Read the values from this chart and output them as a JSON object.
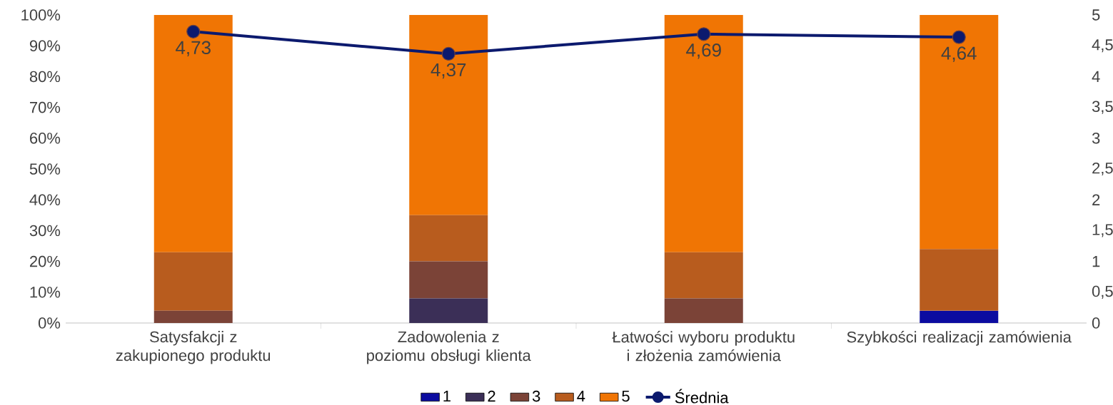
{
  "chart_data": {
    "type": "bar",
    "stacked": true,
    "categories": [
      "Satysfakcji z zakupionego produktu",
      "Zadowolenia z poziomu obsługi klienta",
      "Łatwości wyboru produktu i złożenia zamówienia",
      "Szybkości realizacji zamówienia"
    ],
    "series": [
      {
        "name": "1",
        "color": "#0c0ca0",
        "values": [
          0,
          0,
          0,
          4
        ]
      },
      {
        "name": "2",
        "color": "#3b2f57",
        "values": [
          0,
          8,
          0,
          0
        ]
      },
      {
        "name": "3",
        "color": "#7b4337",
        "values": [
          4,
          12,
          8,
          0
        ]
      },
      {
        "name": "4",
        "color": "#b85c1e",
        "values": [
          19,
          15,
          15,
          20
        ]
      },
      {
        "name": "5",
        "color": "#f07504",
        "values": [
          77,
          65,
          77,
          76
        ]
      },
      {
        "name": "Średnia",
        "type": "line",
        "axis": "y2",
        "marker": "circle",
        "color": "#0c1a6e",
        "values": [
          4.73,
          4.37,
          4.69,
          4.64
        ],
        "value_labels": [
          "4,73",
          "4,37",
          "4,69",
          "4,64"
        ]
      }
    ],
    "ylim": [
      0,
      100
    ],
    "yticks": [
      {
        "value": 0,
        "label": "0%"
      },
      {
        "value": 10,
        "label": "10%"
      },
      {
        "value": 20,
        "label": "20%"
      },
      {
        "value": 30,
        "label": "30%"
      },
      {
        "value": 40,
        "label": "40%"
      },
      {
        "value": 50,
        "label": "50%"
      },
      {
        "value": 60,
        "label": "60%"
      },
      {
        "value": 70,
        "label": "70%"
      },
      {
        "value": 80,
        "label": "80%"
      },
      {
        "value": 90,
        "label": "90%"
      },
      {
        "value": 100,
        "label": "100%"
      }
    ],
    "y2lim": [
      0,
      5
    ],
    "y2ticks": [
      0,
      {
        "value": 0.5,
        "label": "0,5"
      },
      1,
      {
        "value": 1.5,
        "label": "1,5"
      },
      2,
      {
        "value": 2.5,
        "label": "2,5"
      },
      3,
      {
        "value": 3.5,
        "label": "3,5"
      },
      4,
      {
        "value": 4.5,
        "label": "4,5"
      },
      5
    ],
    "grid": false,
    "legend": "bottom"
  }
}
